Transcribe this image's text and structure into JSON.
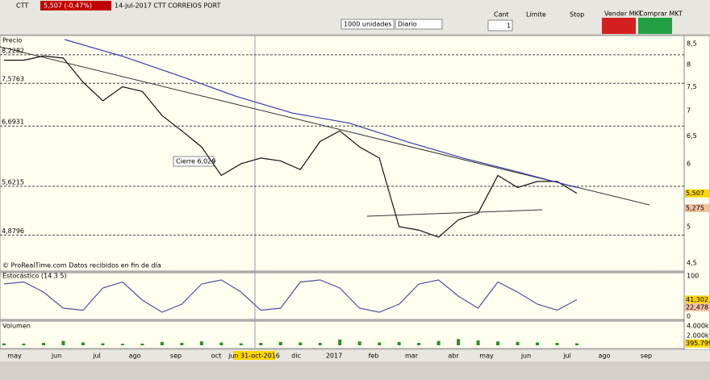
{
  "toolbar": {
    "symbol": "CTT",
    "quote": "5,507 (-0,47%)",
    "description": "14-jul-2017 CTT CORREIOS PORT",
    "quantity_select": "1000 unidades",
    "period_select": "Diario",
    "cant_label": "Cant",
    "cant_value": "1",
    "limit_label": "Límite",
    "stop_label": "Stop",
    "sell_button": "Vender MKT",
    "buy_button": "Comprar MKT"
  },
  "footer": {
    "months": [
      "may",
      "jun",
      "jul",
      "ago",
      "sep",
      "oct",
      "jun 31-oct-2016",
      "dic",
      "2017",
      "feb",
      "mar",
      "abr",
      "may",
      "jun",
      "jul",
      "ago",
      "sep"
    ]
  },
  "chart_data": [
    {
      "type": "line",
      "title": "Precio",
      "log_scale": true,
      "ylim": [
        4.5,
        8.5
      ],
      "yticks": [
        {
          "value": 4.5,
          "label": "4,5"
        },
        {
          "value": 5,
          "label": "5"
        },
        {
          "value": 5.5,
          "label": "5,5"
        },
        {
          "value": 6,
          "label": "6"
        },
        {
          "value": 6.5,
          "label": "6,5"
        },
        {
          "value": 7,
          "label": "7"
        },
        {
          "value": 7.5,
          "label": "7,5"
        },
        {
          "value": 8,
          "label": "8"
        },
        {
          "value": 8.5,
          "label": "8,5"
        }
      ],
      "levels": [
        {
          "value": 8.2282,
          "label": "8,2282"
        },
        {
          "value": 7.5763,
          "label": "7,5763"
        },
        {
          "value": 6.6931,
          "label": "6,6931"
        },
        {
          "value": 5.6215,
          "label": "5,6215"
        },
        {
          "value": 4.8796,
          "label": "4,8796"
        }
      ],
      "last_labels": [
        {
          "value": 5.507,
          "label": "5,507"
        },
        {
          "value": 5.275,
          "label": "5,275"
        }
      ],
      "annotation": "Cierre  6,029",
      "copyright": "© ProRealTime.com  Datos recibidos en fin de día",
      "series": [
        {
          "color": "#111111",
          "values": [
            8.1,
            8.1,
            8.2,
            8.15,
            7.6,
            7.2,
            7.5,
            7.4,
            6.9,
            6.6,
            6.3,
            5.8,
            6.0,
            6.1,
            6.05,
            5.9,
            6.4,
            6.6,
            6.3,
            6.1,
            5.0,
            4.95,
            4.85,
            5.1,
            5.2,
            5.8,
            5.6,
            5.7,
            5.7,
            5.507
          ]
        },
        {
          "color": "#3a3ab0",
          "values": [
            8.6,
            8.2,
            7.75,
            7.3,
            6.95,
            6.75,
            6.4,
            6.1,
            5.85,
            5.6
          ]
        }
      ]
    },
    {
      "type": "line",
      "title": "Estocástico (14 3 5)",
      "ylim": [
        0,
        100
      ],
      "yticks": [
        0,
        100
      ],
      "last_labels": [
        {
          "value": 41.302,
          "label": "41,302"
        },
        {
          "value": 22.478,
          "label": "22,478"
        }
      ],
      "series": [
        {
          "color": "#5050a0",
          "values": [
            80,
            85,
            60,
            20,
            15,
            70,
            85,
            40,
            10,
            30,
            80,
            90,
            60,
            15,
            20,
            85,
            90,
            70,
            20,
            10,
            30,
            80,
            90,
            50,
            20,
            85,
            60,
            30,
            15,
            41.302
          ]
        }
      ]
    },
    {
      "type": "bar",
      "title": "Volumen",
      "ylim": [
        0,
        4000
      ],
      "yticks": [
        {
          "value": 2000,
          "label": "2.000k"
        },
        {
          "value": 4000,
          "label": "4.000k"
        }
      ],
      "last_labels": [
        {
          "value": 395.799,
          "label": "395.799"
        }
      ],
      "color": "#2e8b2e",
      "values": [
        400,
        350,
        500,
        900,
        600,
        400,
        300,
        350,
        700,
        500,
        800,
        600,
        400,
        500,
        700,
        600,
        500,
        1200,
        800,
        600,
        700,
        500,
        900,
        1300,
        1000,
        800,
        700,
        600,
        500,
        395.799
      ]
    }
  ]
}
